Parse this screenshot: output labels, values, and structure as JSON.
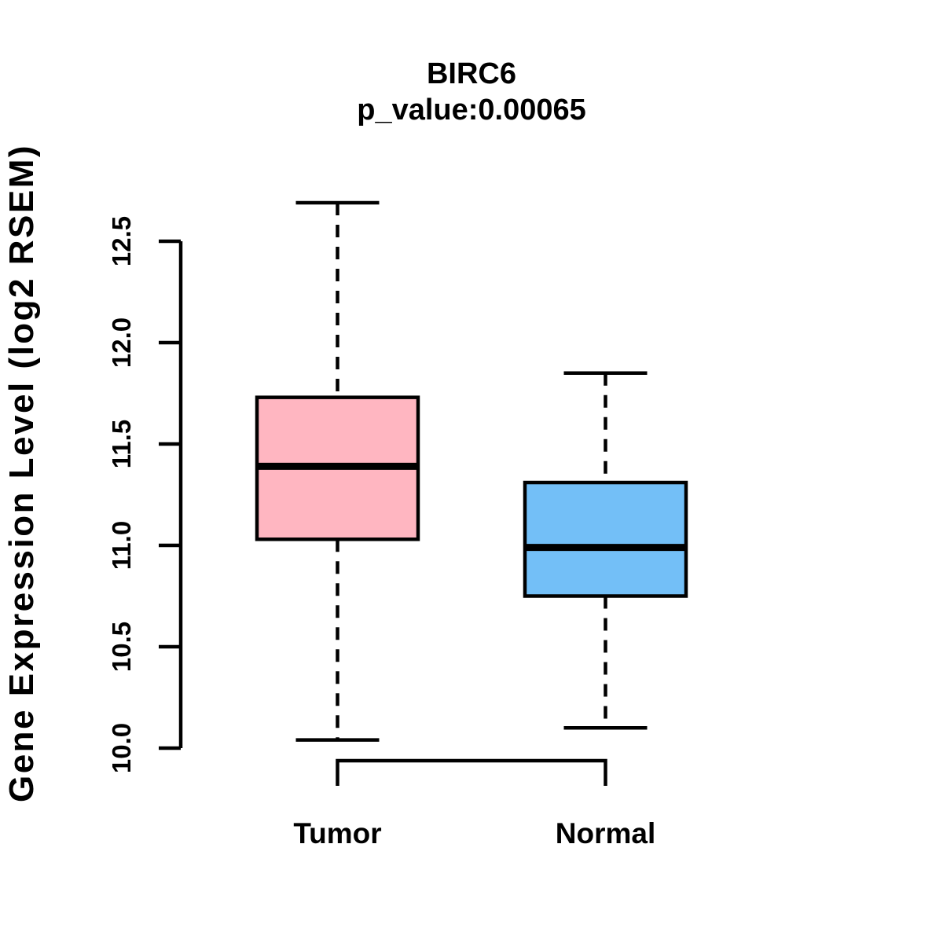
{
  "figure": {
    "title": "BIRC6",
    "subtitle": "p_value:0.00065"
  },
  "chart_data": {
    "type": "boxplot",
    "title": "BIRC6",
    "subtitle": "p_value:0.00065",
    "gene": "BIRC6",
    "p_value": "0.00065",
    "ylabel": "Gene Expression Level (log2 RSEM)",
    "xlabel": "",
    "ylim": [
      10.0,
      12.5
    ],
    "yticks": [
      "10.0",
      "10.5",
      "11.0",
      "11.5",
      "12.0",
      "12.5"
    ],
    "categories": [
      "Tumor",
      "Normal"
    ],
    "grid": false,
    "legend_position": "none",
    "series": [
      {
        "name": "Tumor",
        "box_color": "#FFB6C1",
        "whisker_low": 10.04,
        "q1": 11.03,
        "median": 11.39,
        "q3": 11.73,
        "whisker_high": 12.69
      },
      {
        "name": "Normal",
        "box_color": "#73BFF7",
        "whisker_low": 10.1,
        "q1": 10.75,
        "median": 10.99,
        "q3": 11.31,
        "whisker_high": 11.85
      }
    ],
    "comparison_bracket": {
      "between": [
        "Tumor",
        "Normal"
      ]
    },
    "style": {
      "box_border_color": "#000000",
      "median_color": "#000000",
      "whisker_style": "dashed",
      "background": "#FFFFFF"
    }
  }
}
